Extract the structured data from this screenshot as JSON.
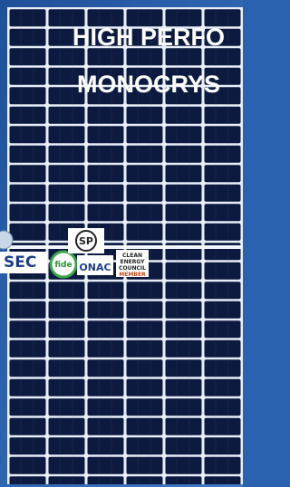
{
  "headline": {
    "line1": "HIGH PERFO",
    "line2": "MONOCRYS"
  },
  "logos": {
    "sec": "SEC",
    "fide": "fide",
    "csa": "SP",
    "onac": "ONAC",
    "cec": {
      "line1": "CLEAN",
      "line2": "ENERGY",
      "line3": "COUNCIL",
      "line4": "MEMBER"
    }
  }
}
